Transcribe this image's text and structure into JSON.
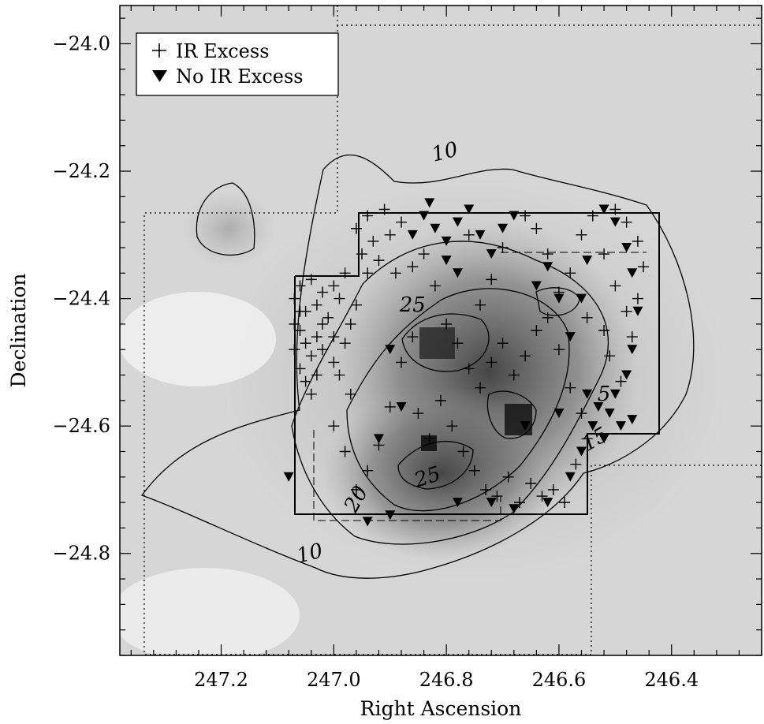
{
  "chart_data": {
    "type": "scatter",
    "xlabel": "Right Ascension",
    "ylabel": "Declination",
    "xlim": [
      247.38,
      246.24
    ],
    "ylim": [
      -24.96,
      -23.94
    ],
    "x_reversed": true,
    "xticks": [
      {
        "value": 247.2,
        "label": "247.2"
      },
      {
        "value": 247.0,
        "label": "247.0"
      },
      {
        "value": 246.8,
        "label": "246.8"
      },
      {
        "value": 246.6,
        "label": "246.6"
      },
      {
        "value": 246.4,
        "label": "246.4"
      }
    ],
    "yticks": [
      {
        "value": -24.0,
        "label": "−24.0"
      },
      {
        "value": -24.2,
        "label": "−24.2"
      },
      {
        "value": -24.4,
        "label": "−24.4"
      },
      {
        "value": -24.6,
        "label": "−24.6"
      },
      {
        "value": -24.8,
        "label": "−24.8"
      }
    ],
    "background": "grayscale extinction map",
    "legend": {
      "position": "top-left",
      "entries": [
        {
          "symbol": "+",
          "label": "IR Excess"
        },
        {
          "symbol": "▼",
          "label": "No IR Excess"
        }
      ]
    },
    "contour_labels": [
      {
        "text": "10",
        "ra": 246.8,
        "dec": -24.18,
        "rotate": -14
      },
      {
        "text": "10",
        "ra": 247.04,
        "dec": -24.81,
        "rotate": -14
      },
      {
        "text": "25",
        "ra": 246.86,
        "dec": -24.42,
        "rotate": 0
      },
      {
        "text": "25",
        "ra": 246.83,
        "dec": -24.69,
        "rotate": -18
      },
      {
        "text": "20",
        "ra": 246.95,
        "dec": -24.72,
        "rotate": -60
      },
      {
        "text": "15",
        "ra": 246.53,
        "dec": -24.63,
        "rotate": -30
      },
      {
        "text": "5",
        "ra": 246.52,
        "dec": -24.56,
        "rotate": 0
      }
    ],
    "series": [
      {
        "name": "IR Excess",
        "marker": "plus",
        "points": [
          [
            247.07,
            -24.4
          ],
          [
            247.06,
            -24.38
          ],
          [
            247.05,
            -24.42
          ],
          [
            247.04,
            -24.37
          ],
          [
            247.03,
            -24.41
          ],
          [
            247.02,
            -24.39
          ],
          [
            247.01,
            -24.43
          ],
          [
            247.0,
            -24.38
          ],
          [
            246.99,
            -24.4
          ],
          [
            246.98,
            -24.36
          ],
          [
            247.06,
            -24.45
          ],
          [
            247.05,
            -24.47
          ],
          [
            247.04,
            -24.49
          ],
          [
            247.03,
            -24.46
          ],
          [
            247.02,
            -24.48
          ],
          [
            247.06,
            -24.51
          ],
          [
            247.05,
            -24.53
          ],
          [
            247.04,
            -24.55
          ],
          [
            247.03,
            -24.52
          ],
          [
            247.0,
            -24.5
          ],
          [
            246.98,
            -24.47
          ],
          [
            246.97,
            -24.44
          ],
          [
            246.96,
            -24.41
          ],
          [
            247.07,
            -24.44
          ],
          [
            247.07,
            -24.48
          ],
          [
            247.06,
            -24.42
          ],
          [
            247.02,
            -24.44
          ],
          [
            247.0,
            -24.46
          ],
          [
            246.99,
            -24.52
          ],
          [
            246.97,
            -24.55
          ],
          [
            246.95,
            -24.33
          ],
          [
            246.94,
            -24.36
          ],
          [
            246.93,
            -24.31
          ],
          [
            246.92,
            -24.34
          ],
          [
            246.9,
            -24.3
          ],
          [
            246.89,
            -24.36
          ],
          [
            246.96,
            -24.29
          ],
          [
            246.94,
            -24.27
          ],
          [
            246.91,
            -24.26
          ],
          [
            246.88,
            -24.28
          ],
          [
            246.86,
            -24.35
          ],
          [
            246.84,
            -24.33
          ],
          [
            246.82,
            -24.38
          ],
          [
            246.8,
            -24.44
          ],
          [
            246.78,
            -24.47
          ],
          [
            246.76,
            -24.51
          ],
          [
            246.74,
            -24.54
          ],
          [
            246.72,
            -24.5
          ],
          [
            246.7,
            -24.47
          ],
          [
            246.68,
            -24.52
          ],
          [
            246.66,
            -24.49
          ],
          [
            246.64,
            -24.45
          ],
          [
            246.62,
            -24.43
          ],
          [
            246.6,
            -24.48
          ],
          [
            246.58,
            -24.54
          ],
          [
            246.56,
            -24.58
          ],
          [
            246.85,
            -24.58
          ],
          [
            246.83,
            -24.62
          ],
          [
            246.81,
            -24.56
          ],
          [
            246.79,
            -24.6
          ],
          [
            246.77,
            -24.64
          ],
          [
            246.75,
            -24.67
          ],
          [
            246.73,
            -24.7
          ],
          [
            246.71,
            -24.71
          ],
          [
            246.69,
            -24.68
          ],
          [
            246.67,
            -24.72
          ],
          [
            246.65,
            -24.69
          ],
          [
            246.63,
            -24.71
          ],
          [
            246.61,
            -24.7
          ],
          [
            246.59,
            -24.72
          ],
          [
            246.57,
            -24.66
          ],
          [
            246.55,
            -24.62
          ],
          [
            246.92,
            -24.63
          ],
          [
            246.94,
            -24.67
          ],
          [
            246.96,
            -24.7
          ],
          [
            246.98,
            -24.64
          ],
          [
            247.0,
            -24.6
          ],
          [
            246.9,
            -24.57
          ],
          [
            246.88,
            -24.5
          ],
          [
            246.86,
            -24.46
          ],
          [
            246.58,
            -24.36
          ],
          [
            246.56,
            -24.3
          ],
          [
            246.54,
            -24.27
          ],
          [
            246.52,
            -24.33
          ],
          [
            246.5,
            -24.38
          ],
          [
            246.48,
            -24.42
          ],
          [
            246.47,
            -24.46
          ],
          [
            246.46,
            -24.4
          ],
          [
            246.45,
            -24.35
          ],
          [
            246.46,
            -24.31
          ],
          [
            246.48,
            -24.28
          ],
          [
            246.5,
            -24.26
          ],
          [
            246.52,
            -24.45
          ],
          [
            246.51,
            -24.49
          ],
          [
            246.49,
            -24.53
          ],
          [
            246.55,
            -24.43
          ],
          [
            246.6,
            -24.39
          ],
          [
            246.62,
            -24.33
          ],
          [
            246.64,
            -24.29
          ],
          [
            246.66,
            -24.27
          ],
          [
            246.7,
            -24.32
          ],
          [
            246.72,
            -24.37
          ],
          [
            246.74,
            -24.41
          ],
          [
            246.76,
            -24.3
          ]
        ]
      },
      {
        "name": "No IR Excess",
        "marker": "triangle-down",
        "points": [
          [
            246.84,
            -24.27
          ],
          [
            246.82,
            -24.29
          ],
          [
            246.8,
            -24.31
          ],
          [
            246.78,
            -24.28
          ],
          [
            246.76,
            -24.26
          ],
          [
            246.74,
            -24.3
          ],
          [
            246.72,
            -24.33
          ],
          [
            246.7,
            -24.29
          ],
          [
            246.68,
            -24.27
          ],
          [
            246.8,
            -24.34
          ],
          [
            246.78,
            -24.36
          ],
          [
            246.83,
            -24.25
          ],
          [
            246.86,
            -24.3
          ],
          [
            246.62,
            -24.35
          ],
          [
            246.6,
            -24.4
          ],
          [
            246.58,
            -24.46
          ],
          [
            246.52,
            -24.26
          ],
          [
            246.5,
            -24.28
          ],
          [
            246.48,
            -24.32
          ],
          [
            246.47,
            -24.36
          ],
          [
            246.46,
            -24.42
          ],
          [
            246.47,
            -24.48
          ],
          [
            246.48,
            -24.52
          ],
          [
            246.5,
            -24.55
          ],
          [
            246.51,
            -24.58
          ],
          [
            246.49,
            -24.6
          ],
          [
            246.47,
            -24.59
          ],
          [
            246.53,
            -24.57
          ],
          [
            246.55,
            -24.55
          ],
          [
            246.54,
            -24.6
          ],
          [
            246.52,
            -24.62
          ],
          [
            246.56,
            -24.64
          ],
          [
            246.58,
            -24.68
          ],
          [
            246.62,
            -24.72
          ],
          [
            246.68,
            -24.73
          ],
          [
            246.72,
            -24.72
          ],
          [
            246.78,
            -24.72
          ],
          [
            246.9,
            -24.74
          ],
          [
            246.94,
            -24.75
          ],
          [
            247.08,
            -24.68
          ],
          [
            246.92,
            -24.62
          ],
          [
            246.88,
            -24.57
          ],
          [
            246.9,
            -24.48
          ],
          [
            246.66,
            -24.6
          ],
          [
            246.6,
            -24.58
          ],
          [
            246.64,
            -24.38
          ],
          [
            246.56,
            -24.4
          ],
          [
            246.55,
            -24.34
          ]
        ]
      }
    ]
  }
}
